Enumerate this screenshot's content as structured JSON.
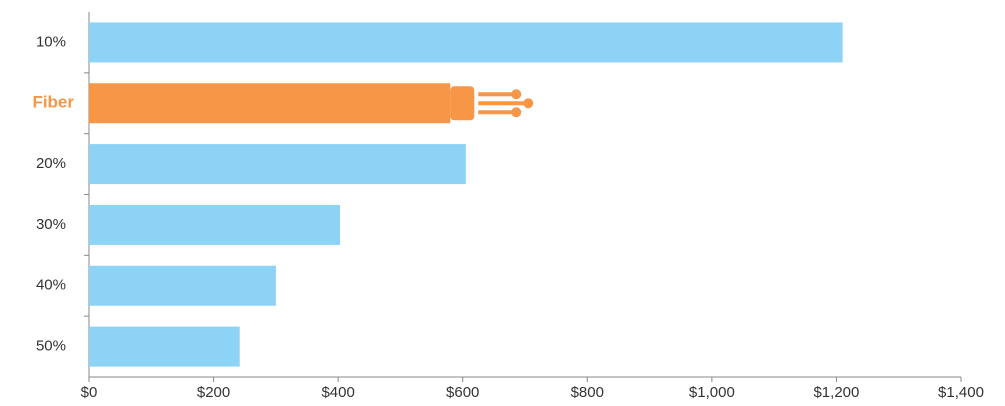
{
  "chart_data": {
    "type": "barh",
    "categories": [
      "10%",
      "Fiber",
      "20%",
      "30%",
      "40%",
      "50%"
    ],
    "values": [
      1210,
      580,
      605,
      403,
      300,
      242
    ],
    "color": "#8dd3f6",
    "colors": [
      "#8dd3f6",
      "#f79646",
      "#8dd3f6",
      "#8dd3f6",
      "#8dd3f6",
      "#8dd3f6"
    ],
    "xlim": [
      0,
      1400
    ],
    "xticks": [
      {
        "value": 0,
        "label": "$0"
      },
      {
        "value": 200,
        "label": "$200"
      },
      {
        "value": 400,
        "label": "$400"
      },
      {
        "value": 600,
        "label": "$600"
      },
      {
        "value": 800,
        "label": "$800"
      },
      {
        "value": 1000,
        "label": "$1,000"
      },
      {
        "value": 1200,
        "label": "$1,200"
      },
      {
        "value": 1400,
        "label": "$1,400"
      }
    ],
    "grid": false
  }
}
